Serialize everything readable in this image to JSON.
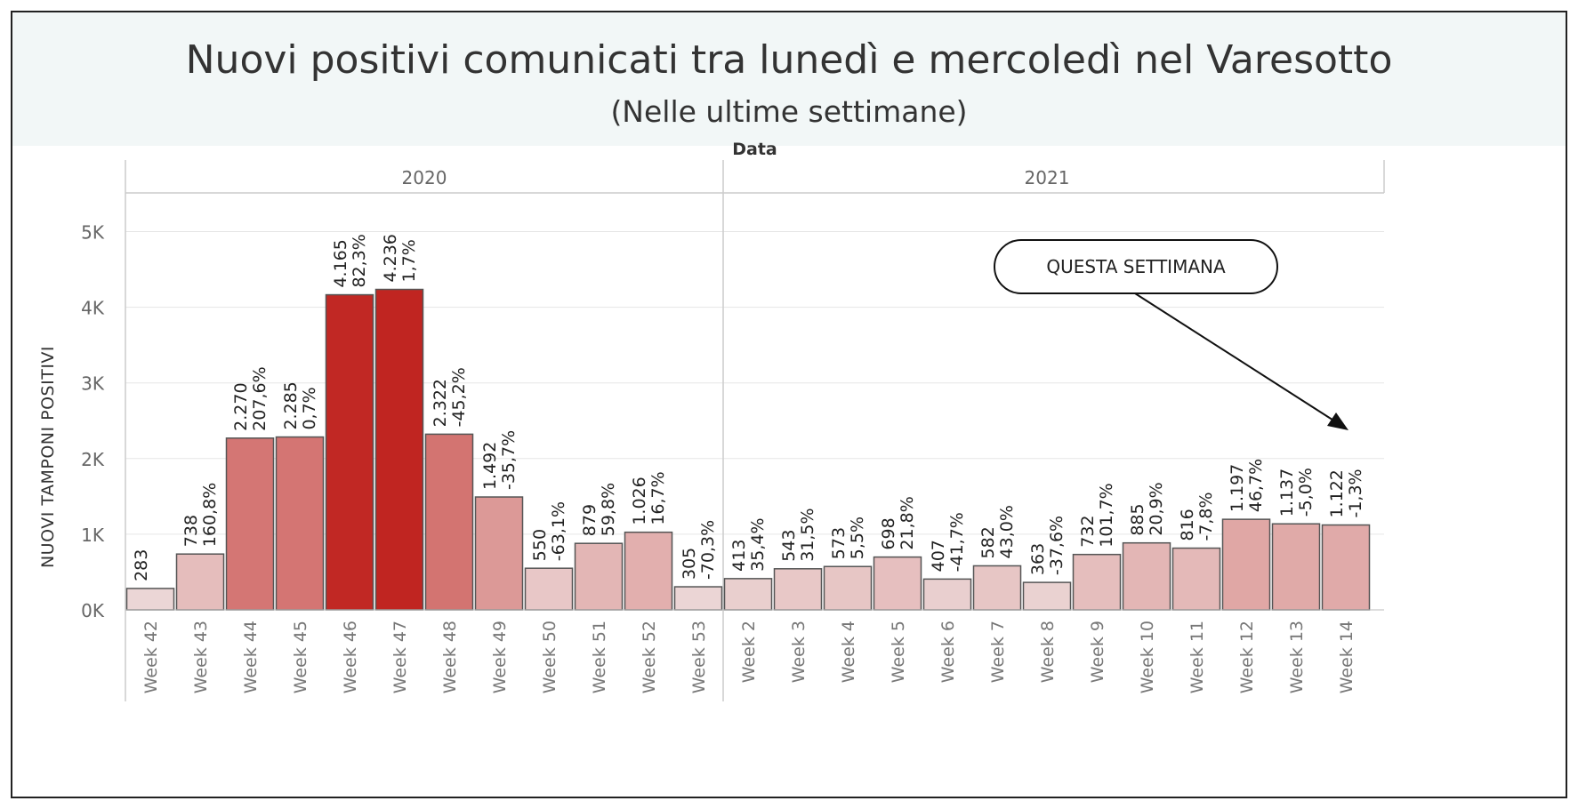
{
  "title": "Nuovi positivi comunicati tra lunedì e mercoledì nel Varesotto",
  "subtitle": "(Nelle ultime settimane)",
  "chart_data": {
    "type": "bar",
    "header": "Data",
    "ylabel": "NUOVI TAMPONI POSITIVI",
    "ylim": [
      0,
      5500
    ],
    "yticks": [
      {
        "value": 0,
        "label": "0K"
      },
      {
        "value": 1000,
        "label": "1K"
      },
      {
        "value": 2000,
        "label": "2K"
      },
      {
        "value": 3000,
        "label": "3K"
      },
      {
        "value": 4000,
        "label": "4K"
      },
      {
        "value": 5000,
        "label": "5K"
      }
    ],
    "grid": true,
    "color_scale": {
      "low": "#f0eaea",
      "high": "#c02521"
    },
    "groups": [
      {
        "year": "2020",
        "bars": [
          {
            "week": "Week 42",
            "value": 283,
            "label": "283",
            "change": ""
          },
          {
            "week": "Week 43",
            "value": 738,
            "label": "738",
            "change": "160,8%"
          },
          {
            "week": "Week 44",
            "value": 2270,
            "label": "2.270",
            "change": "207,6%"
          },
          {
            "week": "Week 45",
            "value": 2285,
            "label": "2.285",
            "change": "0,7%"
          },
          {
            "week": "Week 46",
            "value": 4165,
            "label": "4.165",
            "change": "82,3%"
          },
          {
            "week": "Week 47",
            "value": 4236,
            "label": "4.236",
            "change": "1,7%"
          },
          {
            "week": "Week 48",
            "value": 2322,
            "label": "2.322",
            "change": "-45,2%"
          },
          {
            "week": "Week 49",
            "value": 1492,
            "label": "1.492",
            "change": "-35,7%"
          },
          {
            "week": "Week 50",
            "value": 550,
            "label": "550",
            "change": "-63,1%"
          },
          {
            "week": "Week 51",
            "value": 879,
            "label": "879",
            "change": "59,8%"
          },
          {
            "week": "Week 52",
            "value": 1026,
            "label": "1.026",
            "change": "16,7%"
          },
          {
            "week": "Week 53",
            "value": 305,
            "label": "305",
            "change": "-70,3%"
          }
        ]
      },
      {
        "year": "2021",
        "bars": [
          {
            "week": "Week 2",
            "value": 413,
            "label": "413",
            "change": "35,4%"
          },
          {
            "week": "Week 3",
            "value": 543,
            "label": "543",
            "change": "31,5%"
          },
          {
            "week": "Week 4",
            "value": 573,
            "label": "573",
            "change": "5,5%"
          },
          {
            "week": "Week 5",
            "value": 698,
            "label": "698",
            "change": "21,8%"
          },
          {
            "week": "Week 6",
            "value": 407,
            "label": "407",
            "change": "-41,7%"
          },
          {
            "week": "Week 7",
            "value": 582,
            "label": "582",
            "change": "43,0%"
          },
          {
            "week": "Week 8",
            "value": 363,
            "label": "363",
            "change": "-37,6%"
          },
          {
            "week": "Week 9",
            "value": 732,
            "label": "732",
            "change": "101,7%"
          },
          {
            "week": "Week 10",
            "value": 885,
            "label": "885",
            "change": "20,9%"
          },
          {
            "week": "Week 11",
            "value": 816,
            "label": "816",
            "change": "-7,8%"
          },
          {
            "week": "Week 12",
            "value": 1197,
            "label": "1.197",
            "change": "46,7%"
          },
          {
            "week": "Week 13",
            "value": 1137,
            "label": "1.137",
            "change": "-5,0%"
          },
          {
            "week": "Week 14",
            "value": 1122,
            "label": "1.122",
            "change": "-1,3%"
          }
        ]
      }
    ],
    "annotation": {
      "text": "QUESTA SETTIMANA",
      "target_week": "Week 14"
    }
  }
}
